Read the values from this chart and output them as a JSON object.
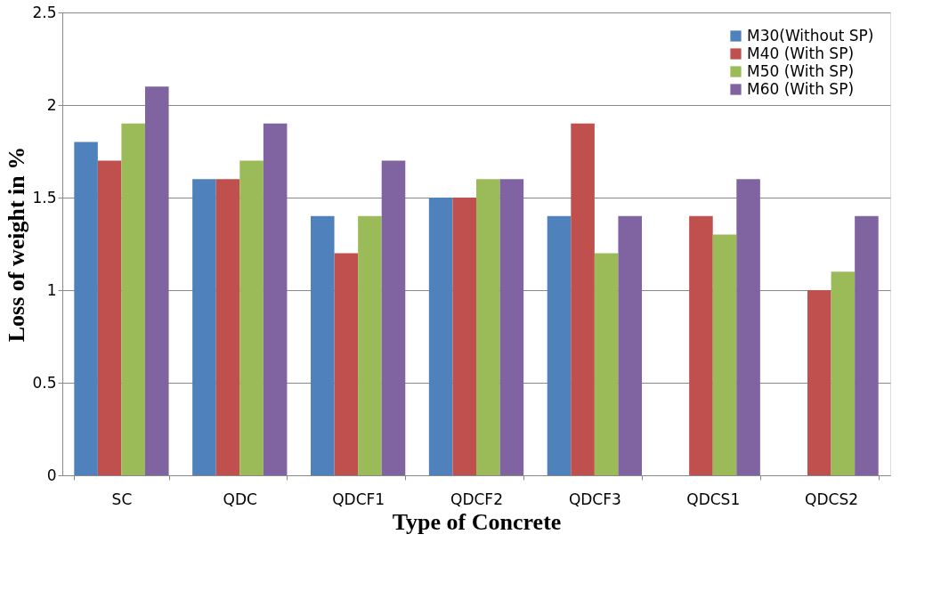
{
  "chart_data": {
    "type": "bar",
    "xlabel": "Type of Concrete",
    "ylabel": "Loss of weight in %",
    "categories": [
      "SC",
      "QDC",
      "QDCF1",
      "QDCF2",
      "QDCF3",
      "QDCS1",
      "QDCS2"
    ],
    "series": [
      {
        "name": "M30(Without SP)",
        "color": "#4f81bd",
        "values": [
          1.8,
          1.6,
          1.4,
          1.5,
          1.4,
          null,
          null
        ]
      },
      {
        "name": "M40 (With SP)",
        "color": "#c0504d",
        "values": [
          1.7,
          1.6,
          1.2,
          1.5,
          1.9,
          1.4,
          1.0
        ]
      },
      {
        "name": "M50 (With SP)",
        "color": "#9bbb59",
        "values": [
          1.9,
          1.7,
          1.4,
          1.6,
          1.2,
          1.3,
          1.1
        ]
      },
      {
        "name": "M60 (With SP)",
        "color": "#8064a2",
        "values": [
          2.1,
          1.9,
          1.7,
          1.6,
          1.4,
          1.6,
          1.4
        ]
      }
    ],
    "ylim": [
      0,
      2.5
    ],
    "yticks": [
      0,
      0.5,
      1,
      1.5,
      2,
      2.5
    ],
    "grid": "y",
    "legend": "top right"
  }
}
